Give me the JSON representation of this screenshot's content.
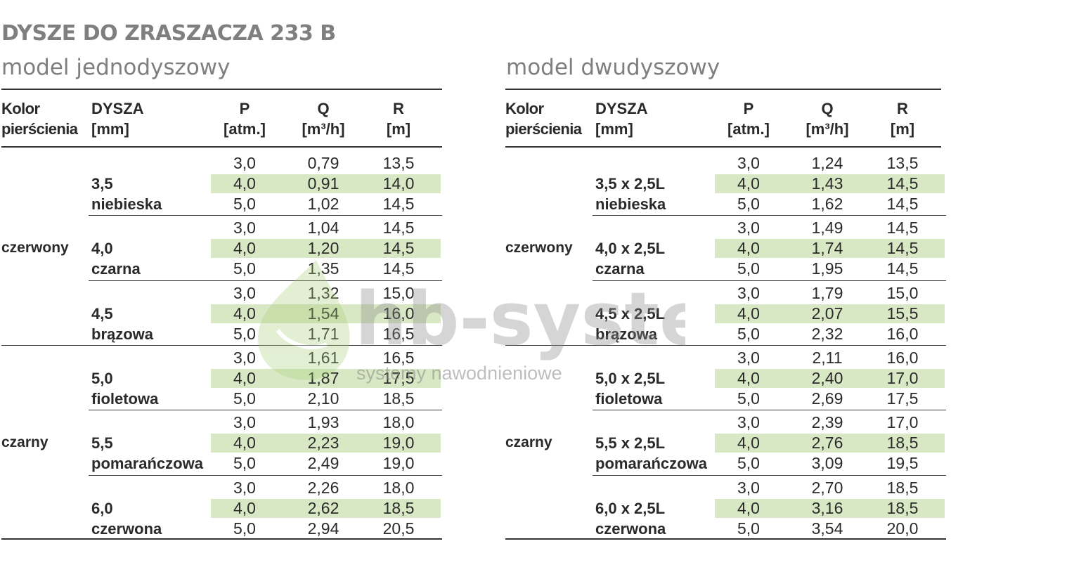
{
  "title": "DYSZE DO ZRASZACZA 233 B",
  "single": {
    "subtitle": "model jednodyszowy",
    "headers": {
      "ring": [
        "Kolor",
        "pierścienia"
      ],
      "nozzle": [
        "DYSZA",
        "[mm]"
      ],
      "p": [
        "P",
        "[atm.]"
      ],
      "q": [
        "Q",
        "[m³/h]"
      ],
      "r": [
        "R",
        "[m]"
      ]
    },
    "ring_colors": [
      "czerwony",
      "czarny"
    ],
    "groups": [
      {
        "nozzle": "3,5",
        "color": "niebieska",
        "rows": [
          [
            "3,0",
            "0,79",
            "13,5"
          ],
          [
            "4,0",
            "0,91",
            "14,0"
          ],
          [
            "5,0",
            "1,02",
            "14,5"
          ]
        ]
      },
      {
        "nozzle": "4,0",
        "color": "czarna",
        "rows": [
          [
            "3,0",
            "1,04",
            "14,5"
          ],
          [
            "4,0",
            "1,20",
            "14,5"
          ],
          [
            "5,0",
            "1,35",
            "14,5"
          ]
        ]
      },
      {
        "nozzle": "4,5",
        "color": "brązowa",
        "rows": [
          [
            "3,0",
            "1,32",
            "15,0"
          ],
          [
            "4,0",
            "1,54",
            "16,0"
          ],
          [
            "5,0",
            "1,71",
            "16,5"
          ]
        ]
      },
      {
        "nozzle": "5,0",
        "color": "fioletowa",
        "rows": [
          [
            "3,0",
            "1,61",
            "16,5"
          ],
          [
            "4,0",
            "1,87",
            "17,5"
          ],
          [
            "5,0",
            "2,10",
            "18,5"
          ]
        ]
      },
      {
        "nozzle": "5,5",
        "color": "pomarańczowa",
        "rows": [
          [
            "3,0",
            "1,93",
            "18,0"
          ],
          [
            "4,0",
            "2,23",
            "19,0"
          ],
          [
            "5,0",
            "2,49",
            "19,0"
          ]
        ]
      },
      {
        "nozzle": "6,0",
        "color": "czerwona",
        "rows": [
          [
            "3,0",
            "2,26",
            "18,0"
          ],
          [
            "4,0",
            "2,62",
            "18,5"
          ],
          [
            "5,0",
            "2,94",
            "20,5"
          ]
        ]
      }
    ]
  },
  "double": {
    "subtitle": "model dwudyszowy",
    "headers": {
      "ring": [
        "Kolor",
        "pierścienia"
      ],
      "nozzle": [
        "DYSZA",
        "[mm]"
      ],
      "p": [
        "P",
        "[atm.]"
      ],
      "q": [
        "Q",
        "[m³/h]"
      ],
      "r": [
        "R",
        "[m]"
      ]
    },
    "ring_colors": [
      "czerwony",
      "czarny"
    ],
    "groups": [
      {
        "nozzle": "3,5 x 2,5L",
        "color": "niebieska",
        "rows": [
          [
            "3,0",
            "1,24",
            "13,5"
          ],
          [
            "4,0",
            "1,43",
            "14,5"
          ],
          [
            "5,0",
            "1,62",
            "14,5"
          ]
        ]
      },
      {
        "nozzle": "4,0 x 2,5L",
        "color": "czarna",
        "rows": [
          [
            "3,0",
            "1,49",
            "14,5"
          ],
          [
            "4,0",
            "1,74",
            "14,5"
          ],
          [
            "5,0",
            "1,95",
            "14,5"
          ]
        ]
      },
      {
        "nozzle": "4,5 x 2,5L",
        "color": "brązowa",
        "rows": [
          [
            "3,0",
            "1,79",
            "15,0"
          ],
          [
            "4,0",
            "2,07",
            "15,5"
          ],
          [
            "5,0",
            "2,32",
            "16,0"
          ]
        ]
      },
      {
        "nozzle": "5,0 x 2,5L",
        "color": "fioletowa",
        "rows": [
          [
            "3,0",
            "2,11",
            "16,0"
          ],
          [
            "4,0",
            "2,40",
            "17,0"
          ],
          [
            "5,0",
            "2,69",
            "17,5"
          ]
        ]
      },
      {
        "nozzle": "5,5 x 2,5L",
        "color": "pomarańczowa",
        "rows": [
          [
            "3,0",
            "2,39",
            "17,0"
          ],
          [
            "4,0",
            "2,76",
            "18,5"
          ],
          [
            "5,0",
            "3,09",
            "19,5"
          ]
        ]
      },
      {
        "nozzle": "6,0 x 2,5L",
        "color": "czerwona",
        "rows": [
          [
            "3,0",
            "2,70",
            "18,5"
          ],
          [
            "4,0",
            "3,16",
            "18,5"
          ],
          [
            "5,0",
            "3,54",
            "20,0"
          ]
        ]
      }
    ]
  },
  "watermark": {
    "brand": "hb-system",
    "tagline": "systemy nawodnieniowe"
  },
  "colors": {
    "title_gray": "#7f7f7f",
    "highlight_green": "#d9e8c4",
    "watermark_green": "#a6cf7a"
  }
}
